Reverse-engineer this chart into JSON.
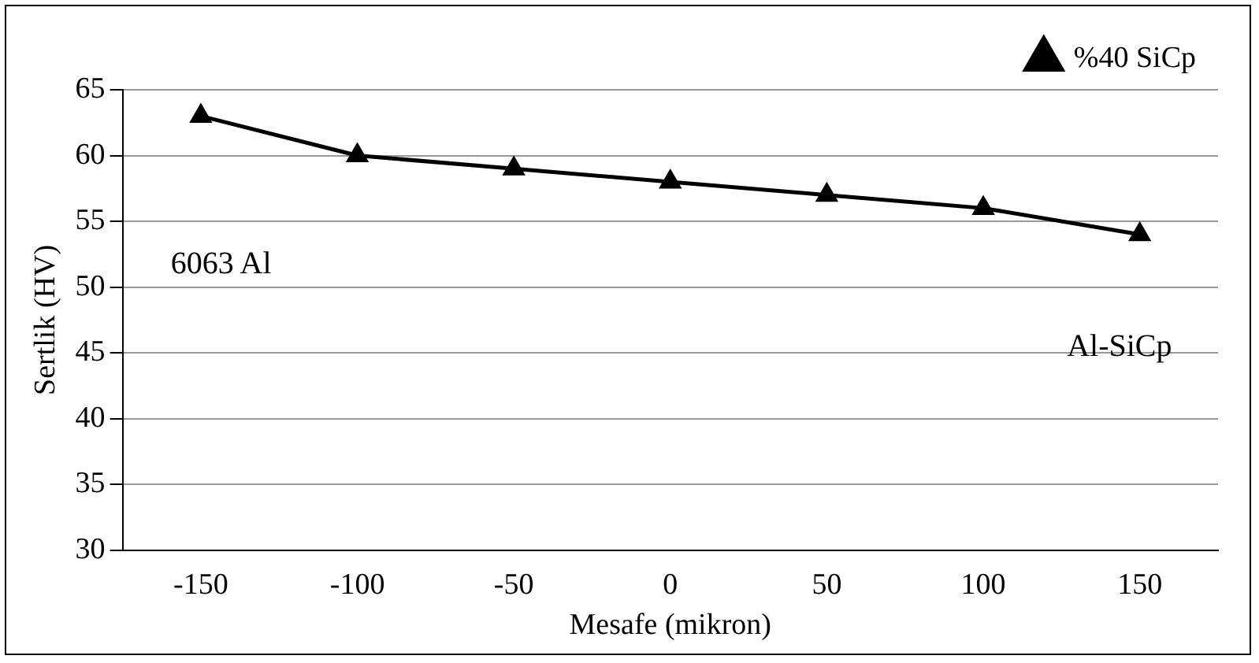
{
  "chart_data": {
    "type": "line",
    "xlabel": "Mesafe (mikron)",
    "ylabel": "Sertlik (HV)",
    "categories": [
      "-150",
      "-100",
      "-50",
      "0",
      "50",
      "100",
      "150"
    ],
    "series": [
      {
        "name": "%40 SiCp",
        "color": "#000000",
        "values": [
          63,
          60,
          59,
          58,
          57,
          56,
          54
        ]
      }
    ],
    "ylim": [
      30,
      65
    ],
    "yticks": [
      30,
      35,
      40,
      45,
      50,
      55,
      60,
      65
    ],
    "grid": "y",
    "legend": "top right",
    "marker": "triangle",
    "line_style": "solid",
    "annotations": [
      "6063 Al",
      "Al-SiCp"
    ]
  }
}
